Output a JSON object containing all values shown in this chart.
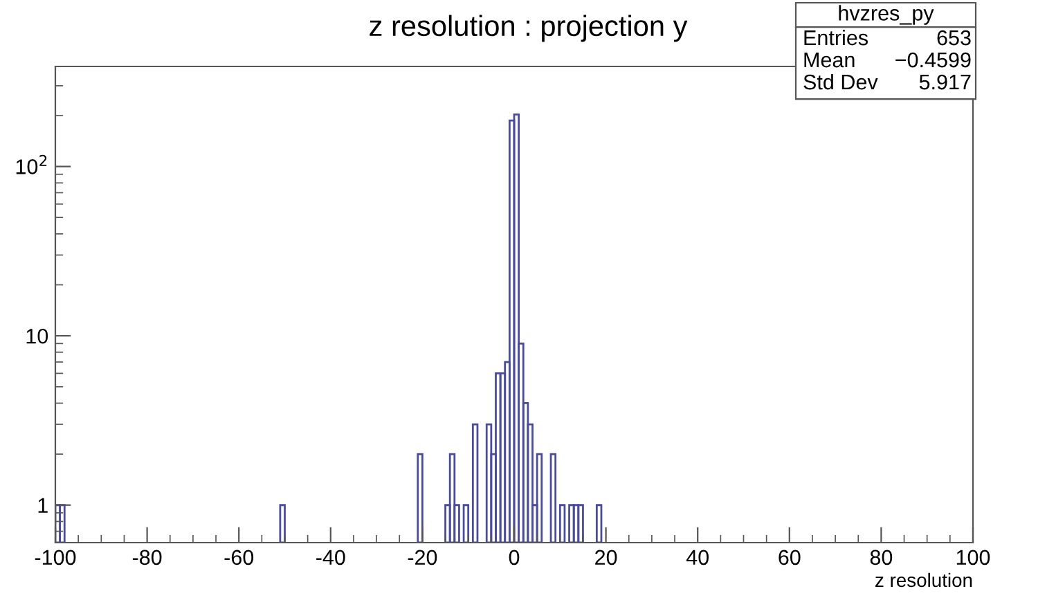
{
  "chart_data": {
    "type": "histogram",
    "title": "z resolution : projection y",
    "xlabel": "z resolution",
    "bins": [
      -100,
      -99,
      -98,
      -51,
      -50,
      -21,
      -20,
      -15,
      -14,
      -13,
      -12,
      -11,
      -10,
      -9,
      -8,
      -6,
      -5,
      -4,
      -3,
      -2,
      -1,
      0,
      1,
      2,
      3,
      4,
      5,
      6,
      8,
      9,
      10,
      11,
      12,
      13,
      14,
      15,
      18,
      19
    ],
    "values": [
      1,
      1,
      null,
      1,
      null,
      2,
      null,
      1,
      2,
      1,
      null,
      1,
      null,
      3,
      null,
      3,
      2,
      6,
      6,
      7,
      187,
      203,
      9,
      4,
      3,
      1,
      2,
      null,
      2,
      null,
      1,
      null,
      1,
      1,
      1,
      null,
      1
    ],
    "color": "#4b4b9b",
    "log": "y",
    "grid": false,
    "xlim": [
      -100,
      100
    ],
    "xticks": [
      -100,
      -80,
      -60,
      -40,
      -20,
      0,
      20,
      40,
      60,
      80,
      100
    ],
    "ylim": [
      0.6,
      390
    ],
    "yticks": [
      1,
      10,
      {
        "value": 100,
        "label": "10$^{2}$"
      }
    ],
    "annotations": [
      "hvzres_py",
      "Entries",
      "653",
      "Mean",
      "−0.4599",
      "Std Dev",
      "5.917"
    ]
  }
}
